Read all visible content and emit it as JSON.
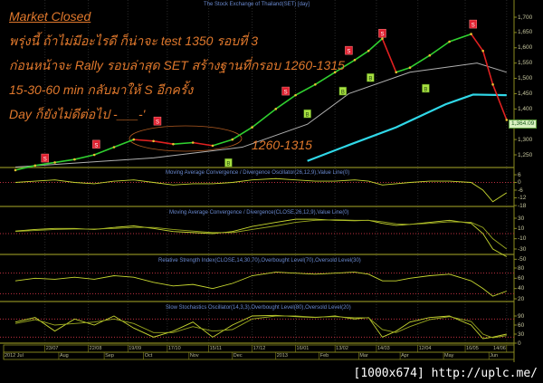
{
  "header": {
    "chart_title": "The Stock Exchange of Thailand(SET) [day]"
  },
  "annotations": {
    "status": "Market Closed",
    "line1": "พรุ่งนี้ ถ้าไม่มีอะไรดี ก็น่าจะ test 1350 รอบที่ 3",
    "line2": "ก่อนหน้าจะ Rally รอบล่าสุด SET สร้างฐานที่กรอบ 1260-1315",
    "line3": "15-30-60 min กลับมาให้ S อีกครั้ง",
    "line4": "Day ก็ยังไม่ดีต่อไป -___-'",
    "range_label": "1260-1315"
  },
  "watermark": "[1000x674] http://uplc.me/",
  "colors": {
    "background": "#000000",
    "annotation": "#e0782c",
    "frame": "#8a8a20",
    "up": "#30d030",
    "down": "#e02020",
    "ma_long": "#30d8e8",
    "ma_mid": "#b0b0b0",
    "indicator": "#c8d830",
    "level_line": "#c03040",
    "sell_marker": "#e02030",
    "buy_marker": "#a8e040"
  },
  "chart_data": [
    {
      "type": "line",
      "title": "The Stock Exchange of Thailand(SET) [day]",
      "ylim": [
        1200,
        1730
      ],
      "yticks": [
        "1,700",
        "1,650",
        "1,600",
        "1,550",
        "1,500",
        "1,450",
        "1,400",
        "1,300",
        "1,250"
      ],
      "ytick_values": [
        1700,
        1650,
        1600,
        1550,
        1500,
        1450,
        1400,
        1300,
        1250
      ],
      "last_value": "1,364.09",
      "x": [
        "2012-07-02",
        "2012-07-16",
        "2012-07-30",
        "2012-08-13",
        "2012-08-27",
        "2012-09-10",
        "2012-09-24",
        "2012-10-08",
        "2012-10-22",
        "2012-11-05",
        "2012-11-19",
        "2012-12-03",
        "2012-12-17",
        "2013-01-02",
        "2013-01-16",
        "2013-01-30",
        "2013-02-13",
        "2013-02-27",
        "2013-03-08",
        "2013-03-19",
        "2013-03-28",
        "2013-04-08",
        "2013-04-22",
        "2013-05-06",
        "2013-05-21",
        "2013-05-29",
        "2013-06-05",
        "2013-06-14"
      ],
      "series": [
        {
          "values": [
            1200,
            1215,
            1225,
            1235,
            1250,
            1275,
            1300,
            1295,
            1285,
            1290,
            1280,
            1300,
            1340,
            1400,
            1445,
            1480,
            1520,
            1560,
            1590,
            1630,
            1520,
            1535,
            1575,
            1620,
            1645,
            1590,
            1480,
            1364.09
          ]
        }
      ],
      "moving_averages": [
        {
          "color": "#30d8e8",
          "x": [
            "2013-01-24",
            "2013-02-22",
            "2013-03-28",
            "2013-05-02",
            "2013-05-22",
            "2013-06-14"
          ],
          "values": [
            1230,
            1282,
            1340,
            1415,
            1447,
            1445
          ]
        },
        {
          "color": "#b0b0b0",
          "x": [
            "2012-07-02",
            "2012-10-08",
            "2012-12-10",
            "2013-01-24",
            "2013-02-22",
            "2013-04-08",
            "2013-05-24",
            "2013-06-14"
          ],
          "values": [
            1210,
            1240,
            1275,
            1350,
            1450,
            1520,
            1550,
            1520
          ]
        }
      ],
      "signals": [
        {
          "type": "S",
          "date": "2012-07-23",
          "level": 1238
        },
        {
          "type": "S",
          "date": "2012-08-28",
          "level": 1283
        },
        {
          "type": "S",
          "date": "2012-10-10",
          "level": 1359
        },
        {
          "type": "S",
          "date": "2013-01-09",
          "level": 1457
        },
        {
          "type": "S",
          "date": "2013-02-22",
          "level": 1590
        },
        {
          "type": "S",
          "date": "2013-03-19",
          "level": 1646
        },
        {
          "type": "S",
          "date": "2013-05-22",
          "level": 1676
        },
        {
          "type": "B",
          "date": "2012-11-29",
          "level": 1223
        },
        {
          "type": "B",
          "date": "2013-01-24",
          "level": 1383
        },
        {
          "type": "B",
          "date": "2013-02-19",
          "level": 1457
        },
        {
          "type": "B",
          "date": "2013-03-11",
          "level": 1501
        },
        {
          "type": "B",
          "date": "2013-04-18",
          "level": 1466
        }
      ]
    },
    {
      "type": "line",
      "title": "Moving Average Convergence / Divergence Oscillator(26,12,9),Value Line(0)",
      "yticks": [
        "6",
        "0",
        "-6",
        "-12",
        "-18"
      ],
      "ytick_values": [
        6,
        0,
        -6,
        -12,
        -18
      ],
      "levels": [
        0
      ],
      "series": [
        {
          "values": [
            0,
            1,
            2,
            0,
            -1,
            1,
            2,
            0,
            -2,
            -1,
            -1,
            0,
            2,
            3,
            2,
            1,
            1,
            2,
            1,
            -2,
            -1,
            0,
            1,
            1,
            0,
            -6,
            -15,
            -8
          ]
        }
      ]
    },
    {
      "type": "line",
      "title": "Moving Average Convergence / Divergence(CLOSE,26,12,9),Value Line(0)",
      "yticks": [
        "30",
        "10",
        "-10",
        "-30",
        "-50"
      ],
      "ytick_values": [
        30,
        10,
        -10,
        -30,
        -50
      ],
      "levels": [
        0
      ],
      "series": [
        {
          "values": [
            5,
            8,
            10,
            10,
            8,
            12,
            15,
            10,
            4,
            2,
            0,
            4,
            14,
            22,
            28,
            28,
            26,
            25,
            26,
            20,
            16,
            18,
            22,
            26,
            20,
            0,
            -30,
            -45
          ]
        },
        {
          "values": [
            4,
            6,
            8,
            9,
            9,
            10,
            12,
            12,
            8,
            5,
            2,
            2,
            8,
            15,
            22,
            26,
            27,
            26,
            26,
            23,
            19,
            18,
            20,
            23,
            22,
            12,
            -10,
            -30
          ]
        }
      ]
    },
    {
      "type": "line",
      "title": "Relative Strength Index(CLOSE,14,30,70),Overbought Level(70),Oversold Level(30)",
      "yticks": [
        "80",
        "60",
        "40",
        "20"
      ],
      "ytick_values": [
        80,
        60,
        40,
        20
      ],
      "levels": [
        70,
        30
      ],
      "series": [
        {
          "values": [
            55,
            60,
            58,
            62,
            58,
            65,
            62,
            52,
            45,
            48,
            40,
            50,
            65,
            72,
            70,
            68,
            70,
            72,
            68,
            55,
            55,
            60,
            65,
            68,
            55,
            40,
            25,
            35
          ]
        }
      ]
    },
    {
      "type": "line",
      "title": "Slow Stochastics Oscillator(14,3,3),Overbought Level(80),Oversold Level(20)",
      "yticks": [
        "90",
        "60",
        "30",
        "0"
      ],
      "ytick_values": [
        90,
        60,
        30,
        0
      ],
      "levels": [
        80,
        20
      ],
      "series": [
        {
          "values": [
            70,
            85,
            40,
            80,
            60,
            90,
            50,
            20,
            40,
            70,
            20,
            60,
            90,
            92,
            88,
            85,
            90,
            80,
            85,
            20,
            40,
            70,
            85,
            90,
            60,
            15,
            20,
            30
          ]
        },
        {
          "values": [
            65,
            78,
            60,
            65,
            70,
            80,
            65,
            35,
            35,
            55,
            40,
            45,
            80,
            90,
            90,
            86,
            88,
            84,
            84,
            45,
            35,
            55,
            78,
            88,
            72,
            30,
            18,
            25
          ]
        }
      ]
    }
  ],
  "date_axis": {
    "ticks": [
      {
        "date": "2012-07-23",
        "label": "23/07"
      },
      {
        "date": "2012-08-22",
        "label": "22/08"
      },
      {
        "date": "2012-09-19",
        "label": "19/09"
      },
      {
        "date": "2012-10-17",
        "label": "17/10"
      },
      {
        "date": "2012-11-15",
        "label": "15/11"
      },
      {
        "date": "2012-12-17",
        "label": "17/12"
      },
      {
        "date": "2013-01-16",
        "label": "16/01"
      },
      {
        "date": "2013-02-13",
        "label": "13/02"
      },
      {
        "date": "2013-03-14",
        "label": "14/03"
      },
      {
        "date": "2013-04-12",
        "label": "12/04"
      },
      {
        "date": "2013-05-16",
        "label": "16/05"
      },
      {
        "date": "2013-06-14",
        "label": "14/06"
      }
    ],
    "months": [
      {
        "date": "2012-07-02",
        "label": "2012 Jul"
      },
      {
        "date": "2012-08-01",
        "label": "Aug"
      },
      {
        "date": "2012-09-03",
        "label": "Sep"
      },
      {
        "date": "2012-10-01",
        "label": "Oct"
      },
      {
        "date": "2012-11-01",
        "label": "Nov"
      },
      {
        "date": "2012-12-03",
        "label": "Dec"
      },
      {
        "date": "2013-01-02",
        "label": "2013"
      },
      {
        "date": "2013-02-01",
        "label": "Feb"
      },
      {
        "date": "2013-03-01",
        "label": "Mar"
      },
      {
        "date": "2013-04-01",
        "label": "Apr"
      },
      {
        "date": "2013-05-01",
        "label": "May"
      },
      {
        "date": "2013-06-03",
        "label": "Jun"
      }
    ]
  }
}
